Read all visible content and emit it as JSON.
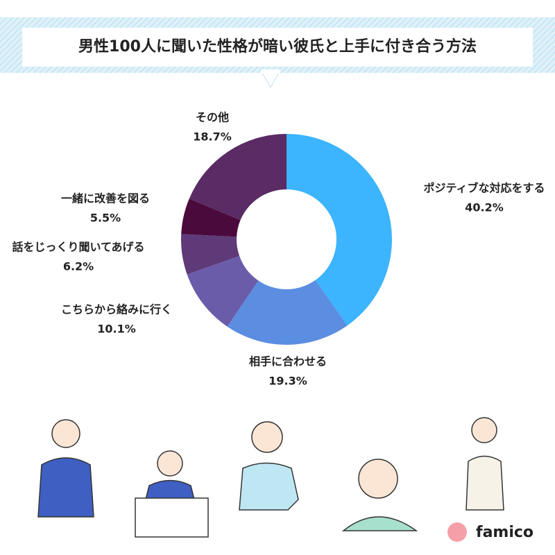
{
  "chart_data": {
    "type": "donut",
    "title": "男性100人に聞いた性格が暗い彼氏と上手に付き合う方法",
    "categories": [
      "ポジティブな対応をする",
      "相手に合わせる",
      "こちらから絡みに行く",
      "話をじっくり聞いてあげる",
      "一緒に改善を図る",
      "その他"
    ],
    "values": [
      40.2,
      19.3,
      10.1,
      6.2,
      5.5,
      18.7
    ],
    "value_labels": [
      "40.2%",
      "19.3%",
      "10.1%",
      "6.2%",
      "5.5%",
      "18.7%"
    ],
    "colors": [
      "#3cb4fe",
      "#5b8ee0",
      "#6a5ca9",
      "#5e3a78",
      "#4b0a3c",
      "#5a2b64"
    ]
  },
  "brand": "famico"
}
